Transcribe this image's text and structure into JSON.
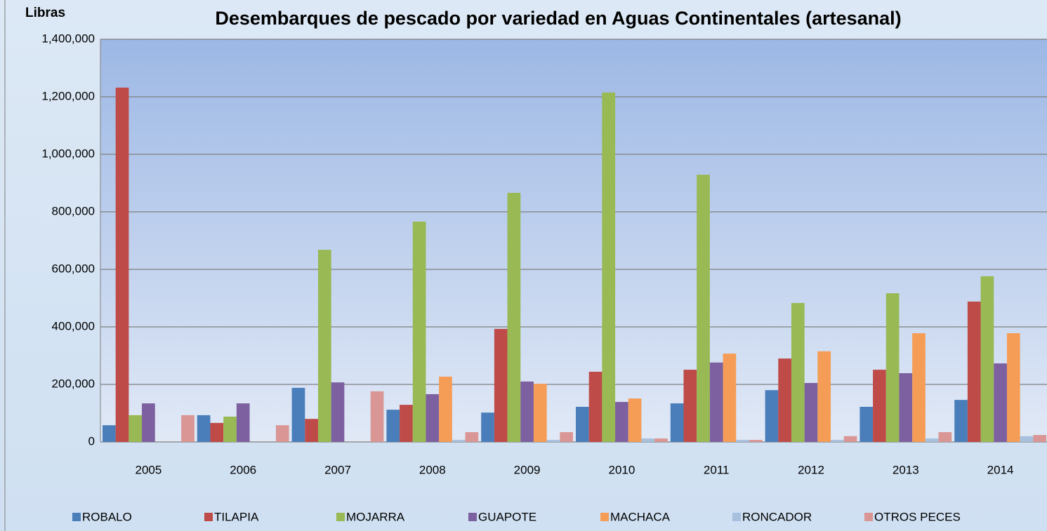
{
  "chart_data": {
    "type": "bar",
    "title": "Desembarques de pescado por variedad en Aguas Continentales (artesanal)",
    "y_label": "Libras",
    "categories": [
      "2005",
      "2006",
      "2007",
      "2008",
      "2009",
      "2010",
      "2011",
      "2012",
      "2013",
      "2014"
    ],
    "series": [
      {
        "name": "ROBALO",
        "color": "#4a7ebb",
        "values": [
          58000,
          93000,
          188000,
          112000,
          102000,
          122000,
          134000,
          180000,
          122000,
          146000
        ]
      },
      {
        "name": "TILAPIA",
        "color": "#be4b48",
        "values": [
          1232000,
          66000,
          80000,
          129000,
          393000,
          244000,
          251000,
          290000,
          251000,
          488000
        ]
      },
      {
        "name": "MOJARRA",
        "color": "#98b954",
        "values": [
          93000,
          88000,
          668000,
          766000,
          866000,
          1215000,
          929000,
          483000,
          517000,
          576000
        ]
      },
      {
        "name": "GUAPOTE",
        "color": "#7d60a0",
        "values": [
          134000,
          134000,
          207000,
          166000,
          210000,
          139000,
          276000,
          205000,
          239000,
          273000
        ]
      },
      {
        "name": "MACHACA",
        "color": "#f59d56",
        "values": [
          0,
          0,
          0,
          227000,
          202000,
          151000,
          307000,
          315000,
          378000,
          378000
        ]
      },
      {
        "name": "RONCADOR",
        "color": "#a7c0de",
        "values": [
          0,
          0,
          0,
          7000,
          7000,
          12000,
          7000,
          7000,
          12000,
          20000
        ]
      },
      {
        "name": "OTROS PECES",
        "color": "#d99694",
        "values": [
          93000,
          58000,
          176000,
          34000,
          34000,
          12000,
          7000,
          20000,
          34000,
          24000
        ]
      }
    ],
    "ylim": [
      0,
      1400000
    ],
    "yticks": [
      0,
      {
        "value": 200000,
        "label": "200,000"
      },
      {
        "value": 400000,
        "label": "400,000"
      },
      {
        "value": 600000,
        "label": "600,000"
      },
      {
        "value": 800000,
        "label": "800,000"
      },
      {
        "value": 1000000,
        "label": "1,000,000"
      },
      {
        "value": 1200000,
        "label": "1,200,000"
      },
      {
        "value": 1400000,
        "label": "1,400,000"
      }
    ],
    "grid": true,
    "legend": "bottom"
  }
}
